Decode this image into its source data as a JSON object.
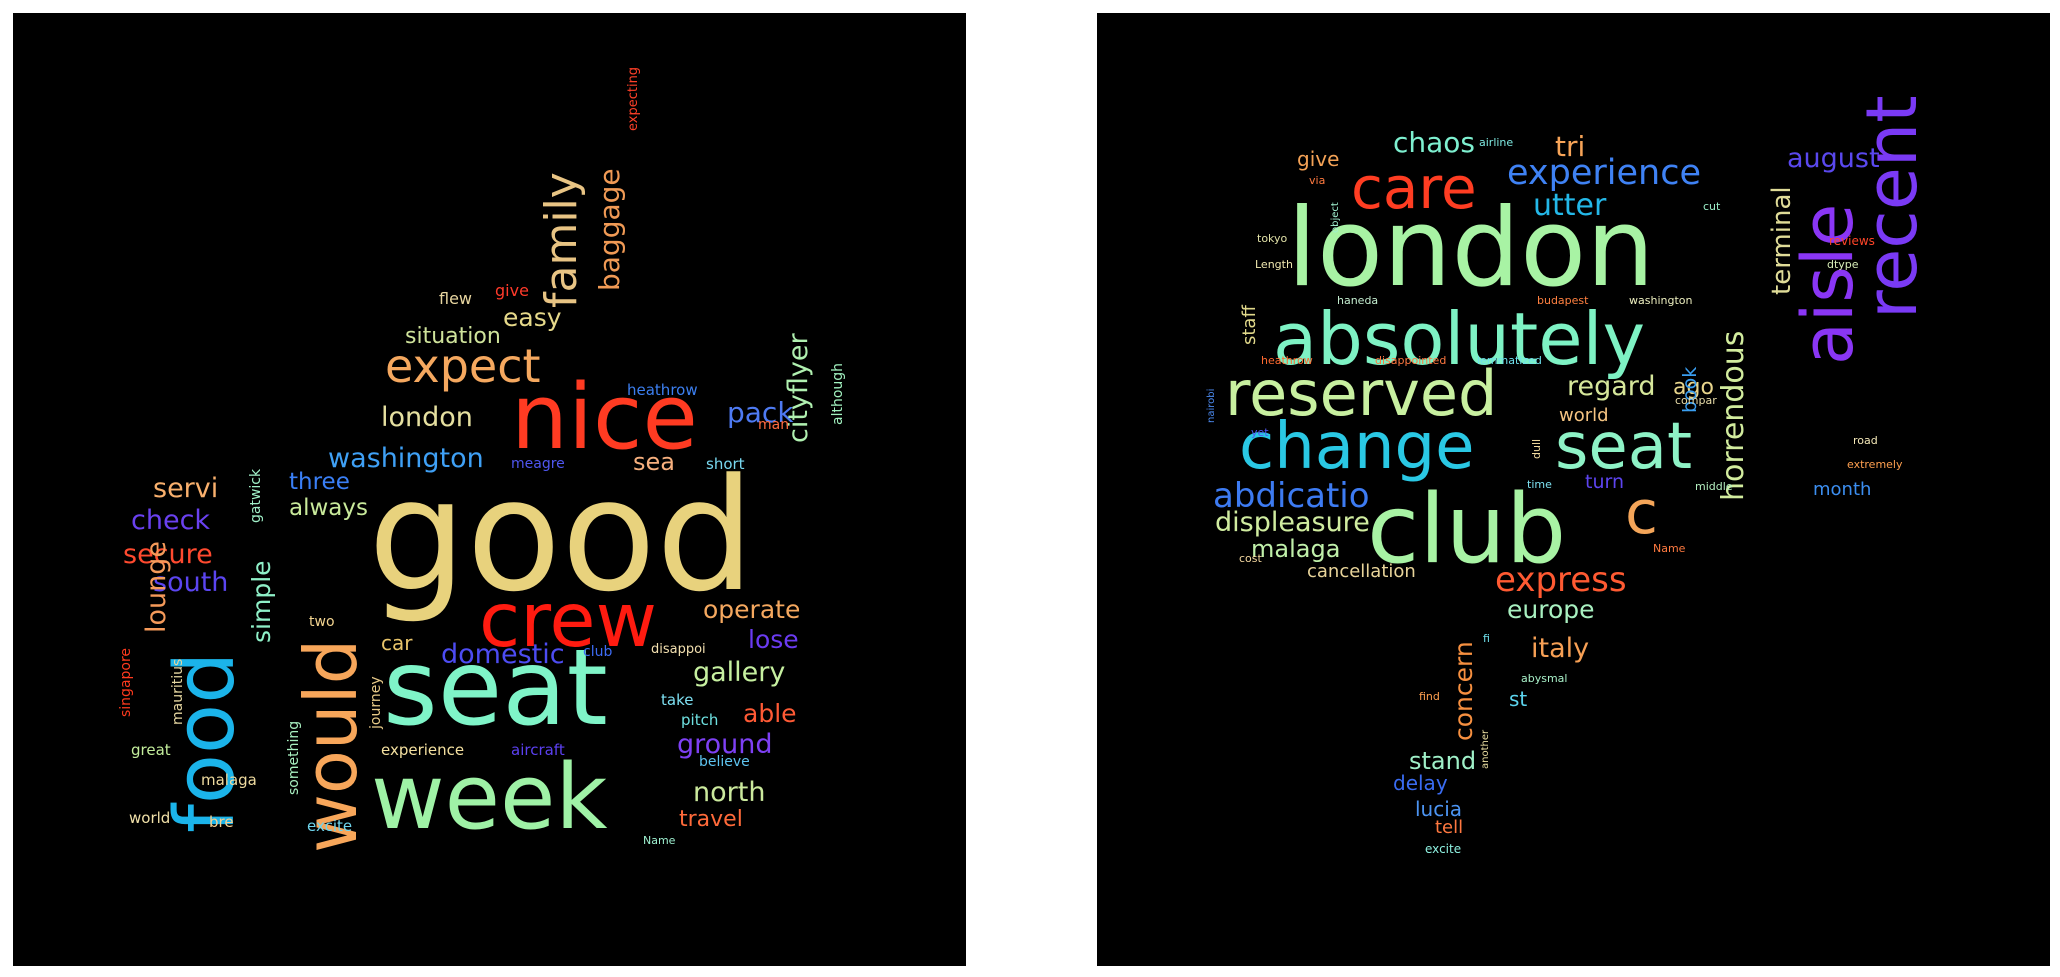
{
  "clouds": [
    {
      "name": "positive",
      "words": [
        {
          "text": "good",
          "color": "#e8d27d",
          "size": 155,
          "rot": 0
        },
        {
          "text": "seat",
          "color": "#7ff4c8",
          "size": 105,
          "rot": 0
        },
        {
          "text": "week",
          "color": "#9ff2a6",
          "size": 90,
          "rot": 0
        },
        {
          "text": "nice",
          "color": "#ff3b22",
          "size": 90,
          "rot": 0
        },
        {
          "text": "crew",
          "color": "#ff1b10",
          "size": 75,
          "rot": 0
        },
        {
          "text": "food",
          "color": "#1bb4ea",
          "size": 82,
          "rot": -90
        },
        {
          "text": "would",
          "color": "#f7a65a",
          "size": 72,
          "rot": -90
        },
        {
          "text": "expect",
          "color": "#f5a85f",
          "size": 46,
          "rot": 0
        },
        {
          "text": "family",
          "color": "#e8c484",
          "size": 44,
          "rot": -90
        },
        {
          "text": "baggage",
          "color": "#f09a55",
          "size": 28,
          "rot": -90
        },
        {
          "text": "easy",
          "color": "#e6d98a",
          "size": 25,
          "rot": 0
        },
        {
          "text": "situation",
          "color": "#cfe39b",
          "size": 22,
          "rot": 0
        },
        {
          "text": "london",
          "color": "#e6e0a0",
          "size": 27,
          "rot": 0
        },
        {
          "text": "washington",
          "color": "#3fa0f5",
          "size": 27,
          "rot": 0
        },
        {
          "text": "pack",
          "color": "#4e7af2",
          "size": 28,
          "rot": 0
        },
        {
          "text": "sea",
          "color": "#f7b07e",
          "size": 24,
          "rot": 0
        },
        {
          "text": "servi",
          "color": "#f9b06d",
          "size": 27,
          "rot": 0
        },
        {
          "text": "three",
          "color": "#3a7ff6",
          "size": 23,
          "rot": 0
        },
        {
          "text": "always",
          "color": "#c9ea9b",
          "size": 23,
          "rot": 0
        },
        {
          "text": "check",
          "color": "#6a41f0",
          "size": 27,
          "rot": 0
        },
        {
          "text": "secure",
          "color": "#ff4a2f",
          "size": 27,
          "rot": 0
        },
        {
          "text": "south",
          "color": "#5b45f0",
          "size": 27,
          "rot": 0
        },
        {
          "text": "operate",
          "color": "#f5a85f",
          "size": 25,
          "rot": 0
        },
        {
          "text": "lose",
          "color": "#6b3bf2",
          "size": 25,
          "rot": 0
        },
        {
          "text": "gallery",
          "color": "#c6f0a0",
          "size": 27,
          "rot": 0
        },
        {
          "text": "able",
          "color": "#ff5a35",
          "size": 25,
          "rot": 0
        },
        {
          "text": "ground",
          "color": "#7e40f4",
          "size": 27,
          "rot": 0
        },
        {
          "text": "north",
          "color": "#cbe99d",
          "size": 27,
          "rot": 0
        },
        {
          "text": "travel",
          "color": "#ff6a3a",
          "size": 22,
          "rot": 0
        },
        {
          "text": "domestic",
          "color": "#4d4cf2",
          "size": 27,
          "rot": 0
        },
        {
          "text": "car",
          "color": "#e8c46a",
          "size": 20,
          "rot": 0
        },
        {
          "text": "cityflyer",
          "color": "#b0f0b0",
          "size": 27,
          "rot": -90
        },
        {
          "text": "lounge",
          "color": "#f59a5a",
          "size": 27,
          "rot": -90
        },
        {
          "text": "simple",
          "color": "#8ff0c8",
          "size": 25,
          "rot": -90
        },
        {
          "text": "flew",
          "color": "#e8d6a0",
          "size": 16,
          "rot": 0
        },
        {
          "text": "give",
          "color": "#ff3a2a",
          "size": 16,
          "rot": 0
        },
        {
          "text": "heathrow",
          "color": "#3c7ff0",
          "size": 15,
          "rot": 0
        },
        {
          "text": "man",
          "color": "#ff6a40",
          "size": 14,
          "rot": 0
        },
        {
          "text": "meagre",
          "color": "#4f56f0",
          "size": 14,
          "rot": 0
        },
        {
          "text": "short",
          "color": "#78d8f0",
          "size": 15,
          "rot": 0
        },
        {
          "text": "although",
          "color": "#a2f2c0",
          "size": 14,
          "rot": -90
        },
        {
          "text": "expecting",
          "color": "#ff4028",
          "size": 13,
          "rot": -90
        },
        {
          "text": "gatwick",
          "color": "#a0f0c8",
          "size": 14,
          "rot": -90
        },
        {
          "text": "two",
          "color": "#f3d490",
          "size": 14,
          "rot": 0
        },
        {
          "text": "club",
          "color": "#3d6bf5",
          "size": 14,
          "rot": 0
        },
        {
          "text": "disappoi",
          "color": "#f3e0b0",
          "size": 13,
          "rot": 0
        },
        {
          "text": "take",
          "color": "#7ee0f2",
          "size": 15,
          "rot": 0
        },
        {
          "text": "pitch",
          "color": "#6ee0e0",
          "size": 15,
          "rot": 0
        },
        {
          "text": "believe",
          "color": "#5ec4f0",
          "size": 14,
          "rot": 0
        },
        {
          "text": "experience",
          "color": "#f4e0a0",
          "size": 15,
          "rot": 0
        },
        {
          "text": "aircraft",
          "color": "#5b40f0",
          "size": 15,
          "rot": 0
        },
        {
          "text": "excite",
          "color": "#6ed4ec",
          "size": 15,
          "rot": 0
        },
        {
          "text": "Name",
          "color": "#9ef0d0",
          "size": 11,
          "rot": 0
        },
        {
          "text": "great",
          "color": "#c4ee9c",
          "size": 15,
          "rot": 0
        },
        {
          "text": "malaga",
          "color": "#f0dca0",
          "size": 15,
          "rot": 0
        },
        {
          "text": "world",
          "color": "#f0e0a8",
          "size": 15,
          "rot": 0
        },
        {
          "text": "bre",
          "color": "#f7d090",
          "size": 15,
          "rot": 0
        },
        {
          "text": "singapore",
          "color": "#ff3a1e",
          "size": 14,
          "rot": -90
        },
        {
          "text": "mauritius",
          "color": "#e4d5a0",
          "size": 14,
          "rot": -90
        },
        {
          "text": "something",
          "color": "#a8f0c0",
          "size": 14,
          "rot": -90
        },
        {
          "text": "journey",
          "color": "#e8ca88",
          "size": 14,
          "rot": -90
        }
      ]
    },
    {
      "name": "negative",
      "words": [
        {
          "text": "london",
          "color": "#a8f3a4",
          "size": 108,
          "rot": 0
        },
        {
          "text": "club",
          "color": "#a8f3a4",
          "size": 95,
          "rot": 0
        },
        {
          "text": "absolutely",
          "color": "#7ef2c4",
          "size": 72,
          "rot": 0
        },
        {
          "text": "change",
          "color": "#2ac8e4",
          "size": 64,
          "rot": 0
        },
        {
          "text": "seat",
          "color": "#8ef2c6",
          "size": 64,
          "rot": 0
        },
        {
          "text": "reserved",
          "color": "#c8f0a0",
          "size": 62,
          "rot": 0
        },
        {
          "text": "care",
          "color": "#ff3d22",
          "size": 58,
          "rot": 0
        },
        {
          "text": "c",
          "color": "#f4a559",
          "size": 60,
          "rot": 0
        },
        {
          "text": "aisle",
          "color": "#8a36f5",
          "size": 70,
          "rot": -90
        },
        {
          "text": "recent",
          "color": "#7a3af5",
          "size": 70,
          "rot": -90
        },
        {
          "text": "experience",
          "color": "#3f82f4",
          "size": 35,
          "rot": 0
        },
        {
          "text": "utter",
          "color": "#24b8e8",
          "size": 30,
          "rot": 0
        },
        {
          "text": "chaos",
          "color": "#7ef0d0",
          "size": 28,
          "rot": 0
        },
        {
          "text": "tri",
          "color": "#f7a458",
          "size": 28,
          "rot": 0
        },
        {
          "text": "give",
          "color": "#f4a256",
          "size": 20,
          "rot": 0
        },
        {
          "text": "august",
          "color": "#5a48ee",
          "size": 27,
          "rot": 0
        },
        {
          "text": "terminal",
          "color": "#e0dc98",
          "size": 26,
          "rot": -90
        },
        {
          "text": "horrendous",
          "color": "#d2ec9e",
          "size": 30,
          "rot": -90
        },
        {
          "text": "regard",
          "color": "#d6e79b",
          "size": 27,
          "rot": 0
        },
        {
          "text": "ago",
          "color": "#e8d58c",
          "size": 22,
          "rot": 0
        },
        {
          "text": "book",
          "color": "#3a9ef0",
          "size": 19,
          "rot": -90
        },
        {
          "text": "world",
          "color": "#f5c482",
          "size": 18,
          "rot": 0
        },
        {
          "text": "abdicatio",
          "color": "#3d7bf2",
          "size": 34,
          "rot": 0
        },
        {
          "text": "displeasure",
          "color": "#d0eca0",
          "size": 27,
          "rot": 0
        },
        {
          "text": "malaga",
          "color": "#c0f0aa",
          "size": 24,
          "rot": 0
        },
        {
          "text": "cancellation",
          "color": "#e8d49a",
          "size": 18,
          "rot": 0
        },
        {
          "text": "express",
          "color": "#ff5a32",
          "size": 34,
          "rot": 0
        },
        {
          "text": "europe",
          "color": "#a8f0c0",
          "size": 25,
          "rot": 0
        },
        {
          "text": "italy",
          "color": "#f7a055",
          "size": 27,
          "rot": 0
        },
        {
          "text": "concern",
          "color": "#f79040",
          "size": 25,
          "rot": -90
        },
        {
          "text": "st",
          "color": "#5cd4ee",
          "size": 20,
          "rot": 0
        },
        {
          "text": "stand",
          "color": "#9ff0c8",
          "size": 24,
          "rot": 0
        },
        {
          "text": "delay",
          "color": "#3a6cf2",
          "size": 20,
          "rot": 0
        },
        {
          "text": "lucia",
          "color": "#4c94f2",
          "size": 20,
          "rot": 0
        },
        {
          "text": "tell",
          "color": "#ff7840",
          "size": 18,
          "rot": 0
        },
        {
          "text": "excite",
          "color": "#8ef0e0",
          "size": 12,
          "rot": 0
        },
        {
          "text": "turn",
          "color": "#5d44ef",
          "size": 19,
          "rot": 0
        },
        {
          "text": "month",
          "color": "#3c8ef0",
          "size": 18,
          "rot": 0
        },
        {
          "text": "staff",
          "color": "#e0d88a",
          "size": 18,
          "rot": -90
        },
        {
          "text": "airline",
          "color": "#7ee8e0",
          "size": 11,
          "rot": 0
        },
        {
          "text": "cut",
          "color": "#9aeec8",
          "size": 11,
          "rot": 0
        },
        {
          "text": "via",
          "color": "#ff7a40",
          "size": 11,
          "rot": 0
        },
        {
          "text": "object",
          "color": "#a0f0d0",
          "size": 10,
          "rot": -90
        },
        {
          "text": "tokyo",
          "color": "#e2e2a8",
          "size": 11,
          "rot": 0
        },
        {
          "text": "Length",
          "color": "#f0e8b0",
          "size": 11,
          "rot": 0
        },
        {
          "text": "haneda",
          "color": "#c4eed0",
          "size": 11,
          "rot": 0
        },
        {
          "text": "budapest",
          "color": "#ff8040",
          "size": 11,
          "rot": 0
        },
        {
          "text": "washington",
          "color": "#eef0c0",
          "size": 11,
          "rot": 0
        },
        {
          "text": "heathrow",
          "color": "#ff6a30",
          "size": 11,
          "rot": 0
        },
        {
          "text": "disappointed",
          "color": "#ff7840",
          "size": 11,
          "rot": 0
        },
        {
          "text": "lemmatized",
          "color": "#6ee0ec",
          "size": 11,
          "rot": 0
        },
        {
          "text": "nairobi",
          "color": "#4c8af0",
          "size": 10,
          "rot": -90
        },
        {
          "text": "yet",
          "color": "#4f56f0",
          "size": 11,
          "rot": 0
        },
        {
          "text": "dull",
          "color": "#f4dca0",
          "size": 11,
          "rot": -90
        },
        {
          "text": "compar",
          "color": "#e8dca8",
          "size": 11,
          "rot": 0
        },
        {
          "text": "time",
          "color": "#7ce0f0",
          "size": 11,
          "rot": 0
        },
        {
          "text": "middle",
          "color": "#b4f0c0",
          "size": 11,
          "rot": 0
        },
        {
          "text": "reviews",
          "color": "#ff4528",
          "size": 12,
          "rot": 0
        },
        {
          "text": "dtype",
          "color": "#d8eeb8",
          "size": 11,
          "rot": 0
        },
        {
          "text": "road",
          "color": "#f4e8b8",
          "size": 11,
          "rot": 0
        },
        {
          "text": "extremely",
          "color": "#ffa050",
          "size": 11,
          "rot": 0
        },
        {
          "text": "Name",
          "color": "#ff7a40",
          "size": 11,
          "rot": 0
        },
        {
          "text": "cost",
          "color": "#f4d8a0",
          "size": 11,
          "rot": 0
        },
        {
          "text": "fi",
          "color": "#6ee0ec",
          "size": 11,
          "rot": 0
        },
        {
          "text": "abysmal",
          "color": "#a8f0c8",
          "size": 11,
          "rot": 0
        },
        {
          "text": "find",
          "color": "#ffa050",
          "size": 11,
          "rot": 0
        },
        {
          "text": "another",
          "color": "#e8dca0",
          "size": 10,
          "rot": -90
        }
      ]
    }
  ]
}
